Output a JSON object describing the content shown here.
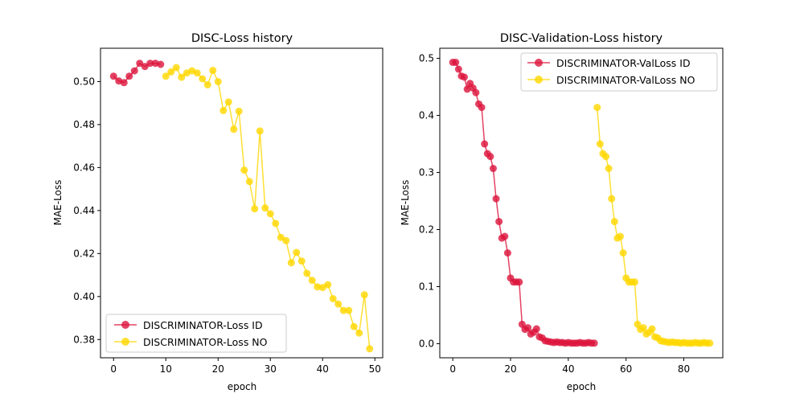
{
  "colors": {
    "id_series": "#dc143c",
    "no_series": "#ffd700",
    "axis": "#000000",
    "legend_border": "#cccccc",
    "background": "#ffffff"
  },
  "chart_data": [
    {
      "type": "line",
      "title": "DISC-Loss history",
      "xlabel": "epoch",
      "ylabel": "MAE-Loss",
      "xlim": [
        -2.5,
        51.5
      ],
      "ylim": [
        0.3715,
        0.5155
      ],
      "xticks": [
        0,
        10,
        20,
        30,
        40,
        50
      ],
      "xtick_labels": [
        "0",
        "10",
        "20",
        "30",
        "40",
        "50"
      ],
      "yticks": [
        0.38,
        0.4,
        0.42,
        0.44,
        0.46,
        0.48,
        0.5
      ],
      "ytick_labels": [
        "0.38",
        "0.40",
        "0.42",
        "0.44",
        "0.46",
        "0.48",
        "0.50"
      ],
      "grid": false,
      "legend_position": "lower-left",
      "series": [
        {
          "name": "DISCRIMINATOR-Loss ID",
          "color": "#dc143c",
          "x": [
            0,
            1,
            2,
            3,
            4,
            5,
            6,
            7,
            8,
            9
          ],
          "y": [
            0.5025,
            0.5003,
            0.4995,
            0.5025,
            0.505,
            0.5085,
            0.507,
            0.5085,
            0.5085,
            0.508
          ]
        },
        {
          "name": "DISCRIMINATOR-Loss NO",
          "color": "#ffd700",
          "x": [
            10,
            11,
            12,
            13,
            14,
            15,
            16,
            17,
            18,
            19,
            20,
            21,
            22,
            23,
            24,
            25,
            26,
            27,
            28,
            29,
            30,
            31,
            32,
            33,
            34,
            35,
            36,
            37,
            38,
            39,
            40,
            41,
            42,
            43,
            44,
            45,
            46,
            47,
            48,
            49
          ],
          "y": [
            0.5025,
            0.5045,
            0.5065,
            0.502,
            0.504,
            0.505,
            0.504,
            0.5013,
            0.4985,
            0.5052,
            0.5,
            0.4865,
            0.4905,
            0.4778,
            0.4862,
            0.4588,
            0.4535,
            0.4408,
            0.477,
            0.4412,
            0.4385,
            0.434,
            0.4275,
            0.426,
            0.4157,
            0.4205,
            0.4165,
            0.4108,
            0.4075,
            0.4045,
            0.4042,
            0.4055,
            0.399,
            0.3965,
            0.3935,
            0.3935,
            0.386,
            0.383,
            0.4008,
            0.3757
          ]
        }
      ]
    },
    {
      "type": "line",
      "title": "DISC-Validation-Loss history",
      "xlabel": "epoch",
      "ylabel": "MAE-Loss",
      "xlim": [
        -4.5,
        93.5
      ],
      "ylim": [
        -0.0247,
        0.5177
      ],
      "xticks": [
        0,
        20,
        40,
        60,
        80
      ],
      "xtick_labels": [
        "0",
        "20",
        "40",
        "60",
        "80"
      ],
      "yticks": [
        0.0,
        0.1,
        0.2,
        0.3,
        0.4,
        0.5
      ],
      "ytick_labels": [
        "0.0",
        "0.1",
        "0.2",
        "0.3",
        "0.4",
        "0.5"
      ],
      "grid": false,
      "legend_position": "upper-right",
      "series": [
        {
          "name": "DISCRIMINATOR-ValLoss ID",
          "color": "#dc143c",
          "x": [
            0,
            1,
            2,
            3,
            4,
            5,
            6,
            7,
            8,
            9,
            10,
            11,
            12,
            13,
            14,
            15,
            16,
            17,
            18,
            19,
            20,
            21,
            22,
            23,
            24,
            25,
            26,
            27,
            28,
            29,
            30,
            31,
            32,
            33,
            34,
            35,
            36,
            37,
            38,
            39,
            40,
            41,
            42,
            43,
            44,
            45,
            46,
            47,
            48,
            49
          ],
          "y": [
            0.493,
            0.493,
            0.481,
            0.469,
            0.467,
            0.446,
            0.456,
            0.448,
            0.44,
            0.42,
            0.414,
            0.35,
            0.333,
            0.328,
            0.307,
            0.254,
            0.214,
            0.185,
            0.188,
            0.159,
            0.115,
            0.108,
            0.108,
            0.108,
            0.034,
            0.025,
            0.028,
            0.017,
            0.02,
            0.026,
            0.012,
            0.01,
            0.005,
            0.004,
            0.003,
            0.002,
            0.003,
            0.002,
            0.002,
            0.001,
            0.002,
            0.001,
            0.001,
            0.001,
            0.002,
            0.001,
            0.001,
            0.002,
            0.001,
            0.001
          ]
        },
        {
          "name": "DISCRIMINATOR-ValLoss NO",
          "color": "#ffd700",
          "x": [
            50,
            51,
            52,
            53,
            54,
            55,
            56,
            57,
            58,
            59,
            60,
            61,
            62,
            63,
            64,
            65,
            66,
            67,
            68,
            69,
            70,
            71,
            72,
            73,
            74,
            75,
            76,
            77,
            78,
            79,
            80,
            81,
            82,
            83,
            84,
            85,
            86,
            87,
            88,
            89
          ],
          "y": [
            0.414,
            0.35,
            0.333,
            0.328,
            0.307,
            0.254,
            0.214,
            0.185,
            0.188,
            0.159,
            0.115,
            0.108,
            0.108,
            0.108,
            0.034,
            0.025,
            0.028,
            0.017,
            0.02,
            0.026,
            0.012,
            0.01,
            0.005,
            0.004,
            0.003,
            0.002,
            0.003,
            0.002,
            0.002,
            0.001,
            0.002,
            0.001,
            0.001,
            0.001,
            0.002,
            0.001,
            0.001,
            0.002,
            0.001,
            0.001
          ]
        }
      ]
    }
  ]
}
